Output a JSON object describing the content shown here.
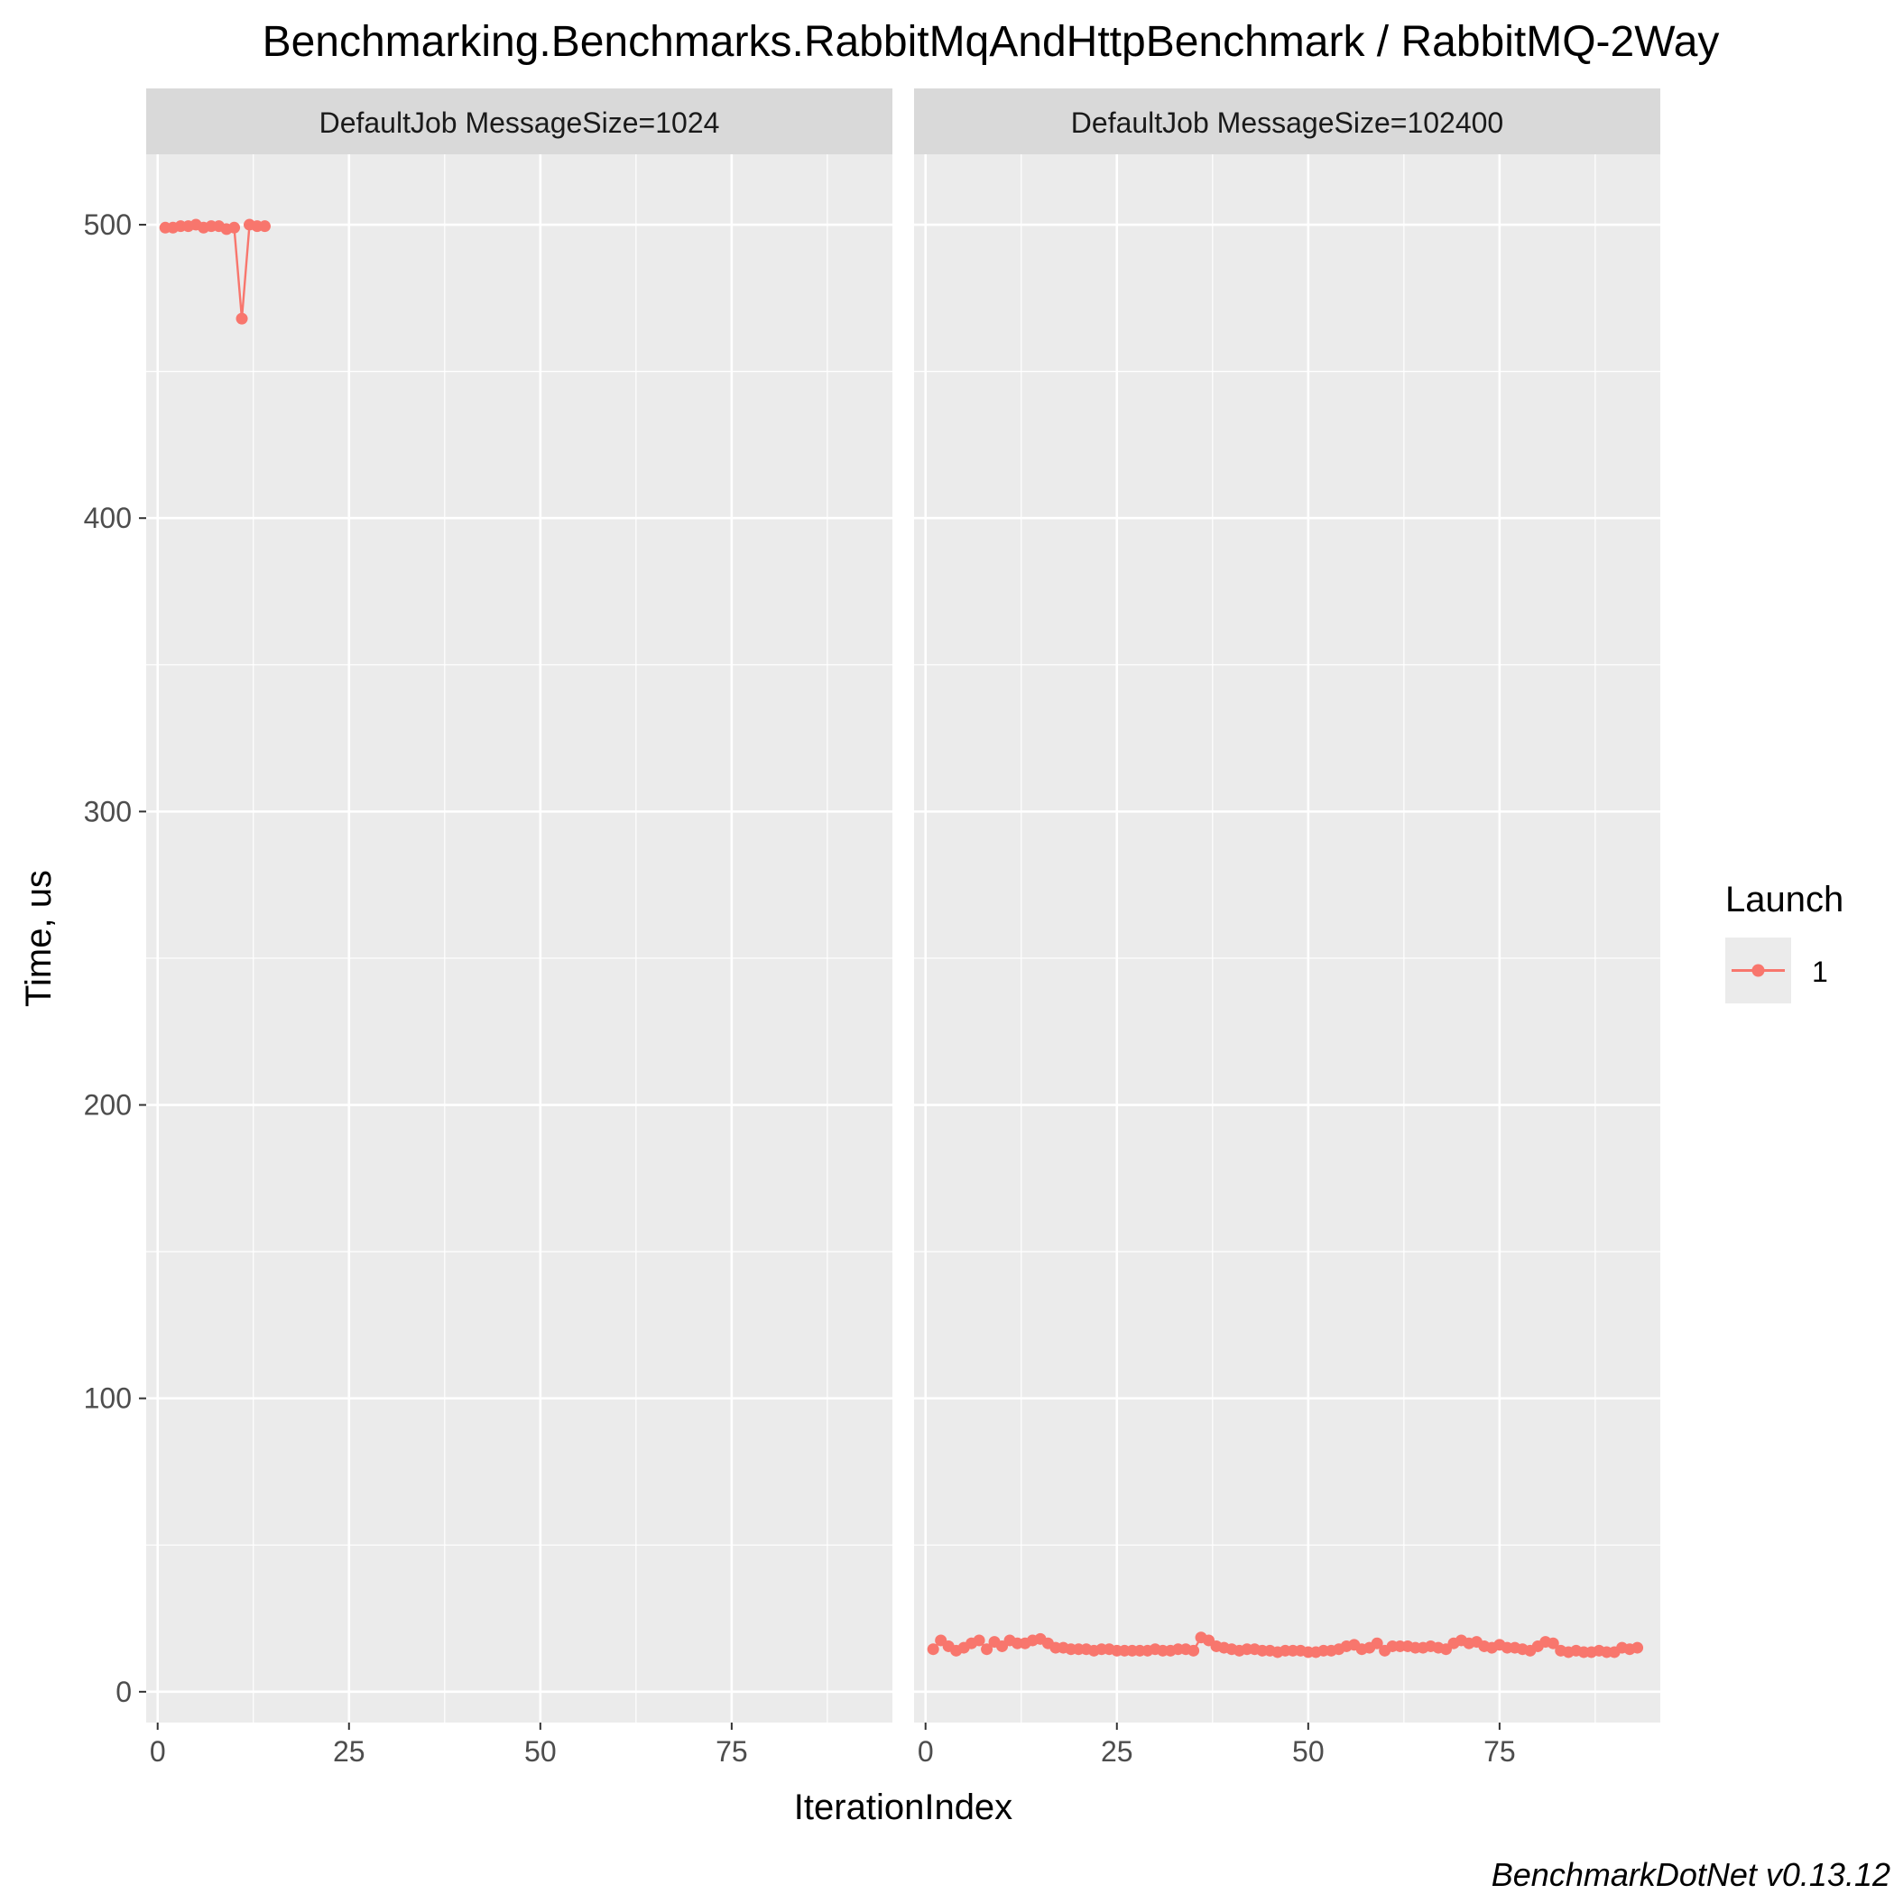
{
  "chart_data": {
    "type": "line",
    "title": "Benchmarking.Benchmarks.RabbitMqAndHttpBenchmark / RabbitMQ-2Way",
    "xlabel": "IterationIndex",
    "ylabel": "Time, us",
    "caption": "BenchmarkDotNet v0.13.12",
    "xlim": [
      -1.5,
      96
    ],
    "ylim": [
      -10.5,
      524
    ],
    "x_ticks": [
      0,
      25,
      50,
      75
    ],
    "x_tick_labels": [
      "0",
      "25",
      "50",
      "75"
    ],
    "x_minor_ticks": [
      12.5,
      37.5,
      62.5,
      87.5
    ],
    "y_ticks": [
      0,
      100,
      200,
      300,
      400,
      500
    ],
    "y_tick_labels": [
      "0",
      "100",
      "200",
      "300",
      "400",
      "500"
    ],
    "y_minor_ticks": [
      50,
      150,
      250,
      350,
      450
    ],
    "grid": true,
    "point_color": "#F8766D",
    "panel_bg": "#EBEBEB",
    "strip_bg": "#D9D9D9",
    "legend": {
      "title": "Launch",
      "placement": "right",
      "entries": [
        {
          "label": "1",
          "color": "#F8766D"
        }
      ]
    },
    "facets": [
      {
        "label": "DefaultJob MessageSize=1024",
        "series": [
          {
            "launch": "1",
            "x": [
              1,
              2,
              3,
              4,
              5,
              6,
              7,
              8,
              9,
              10,
              11,
              12,
              13,
              14
            ],
            "y": [
              499,
              499,
              499.5,
              499.5,
              500,
              499,
              499.5,
              499.5,
              498.5,
              499,
              468,
              500,
              499.5,
              499.5
            ]
          }
        ]
      },
      {
        "label": "DefaultJob MessageSize=102400",
        "series": [
          {
            "launch": "1",
            "x": [
              1,
              2,
              3,
              4,
              5,
              6,
              7,
              8,
              9,
              10,
              11,
              12,
              13,
              14,
              15,
              16,
              17,
              18,
              19,
              20,
              21,
              22,
              23,
              24,
              25,
              26,
              27,
              28,
              29,
              30,
              31,
              32,
              33,
              34,
              35,
              36,
              37,
              38,
              39,
              40,
              41,
              42,
              43,
              44,
              45,
              46,
              47,
              48,
              49,
              50,
              51,
              52,
              53,
              54,
              55,
              56,
              57,
              58,
              59,
              60,
              61,
              62,
              63,
              64,
              65,
              66,
              67,
              68,
              69,
              70,
              71,
              72,
              73,
              74,
              75,
              76,
              77,
              78,
              79,
              80,
              81,
              82,
              83,
              84,
              85,
              86,
              87,
              88,
              89,
              90,
              91,
              92,
              93
            ],
            "y": [
              14.5,
              17.5,
              15.5,
              14,
              15,
              16.5,
              17.5,
              14.5,
              17,
              15.5,
              17.5,
              16.5,
              16.5,
              17.5,
              18,
              16.5,
              15,
              15,
              14.5,
              14.5,
              14.5,
              14,
              14.5,
              14.5,
              14,
              14,
              14,
              14,
              14,
              14.5,
              14,
              14,
              14.5,
              14.5,
              14,
              18.5,
              17.5,
              15.5,
              15,
              14.5,
              14,
              14.5,
              14.5,
              14,
              14,
              13.5,
              14,
              14,
              14,
              13.5,
              13.5,
              14,
              14,
              14.5,
              15.5,
              16,
              14.5,
              15,
              16.5,
              14,
              15.5,
              15.5,
              15.5,
              15,
              15,
              15.5,
              15,
              14.5,
              16.5,
              17.5,
              16.5,
              17,
              15.5,
              15,
              16,
              15,
              15,
              14.5,
              14,
              15.5,
              17,
              16.5,
              14,
              13.5,
              14,
              13.5,
              13.5,
              14,
              13.5,
              13.5,
              15,
              14.5,
              15
            ]
          }
        ]
      }
    ]
  }
}
